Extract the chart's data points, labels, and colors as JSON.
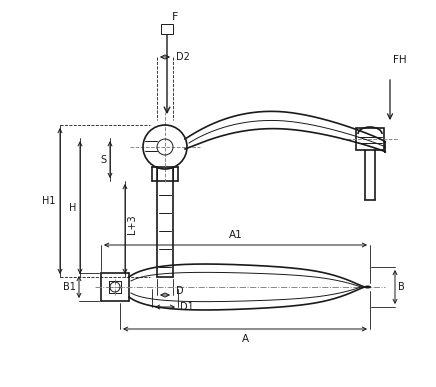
{
  "bg_color": "#f0f0f0",
  "line_color": "#1a1a1a",
  "dim_color": "#1a1a1a",
  "fig_width": 4.36,
  "fig_height": 3.87,
  "dpi": 100,
  "labels": {
    "F": "F",
    "FH": "FH",
    "D2": "D2",
    "H1": "H1",
    "H": "H",
    "S": "S",
    "L3": "L+3",
    "D": "D",
    "D1": "D1",
    "A1": "A1",
    "A": "A",
    "B1": "B1",
    "B": "B"
  }
}
